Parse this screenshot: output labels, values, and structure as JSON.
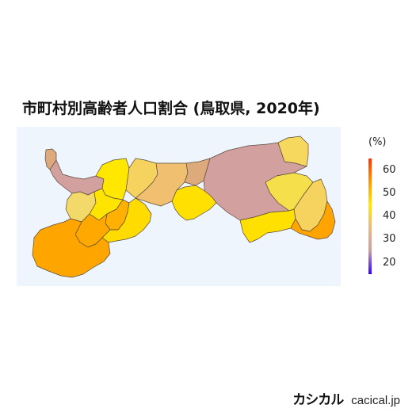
{
  "title": "市町村別高齢者人口割合 (鳥取県, 2020年)",
  "legend": {
    "unit": "(%)",
    "ticks": [
      "60",
      "50",
      "40",
      "30",
      "20"
    ],
    "min": 15,
    "max": 65,
    "colors": [
      "#ff3300",
      "#ff9900",
      "#ffe800",
      "#e9b98a",
      "#c9a0a0",
      "#3300ff"
    ]
  },
  "map": {
    "background": "#eef5fc",
    "regions": [
      {
        "name": "region-1",
        "color": "#dcaa7c"
      },
      {
        "name": "region-2",
        "color": "#d3a0a0"
      },
      {
        "name": "region-3",
        "color": "#ffe700"
      },
      {
        "name": "region-4",
        "color": "#f5d35e"
      },
      {
        "name": "region-5",
        "color": "#f0c070"
      },
      {
        "name": "region-6",
        "color": "#ddaa7b"
      },
      {
        "name": "region-7",
        "color": "#d3a0a0"
      },
      {
        "name": "region-8",
        "color": "#f7d85e"
      },
      {
        "name": "region-9",
        "color": "#f5e04c"
      },
      {
        "name": "region-10",
        "color": "#f3d86a"
      },
      {
        "name": "region-11",
        "color": "#ffe400"
      },
      {
        "name": "region-12",
        "color": "#ffb000"
      },
      {
        "name": "region-13",
        "color": "#ffa800"
      },
      {
        "name": "region-14",
        "color": "#ffe000"
      },
      {
        "name": "region-15",
        "color": "#ffe000"
      },
      {
        "name": "region-16",
        "color": "#f5d35e"
      },
      {
        "name": "region-17",
        "color": "#ffa400"
      },
      {
        "name": "region-18",
        "color": "#ffdb00"
      },
      {
        "name": "region-19",
        "color": "#ffa500"
      }
    ]
  },
  "brand": {
    "name": "カシカル",
    "url": "cacical.jp"
  }
}
